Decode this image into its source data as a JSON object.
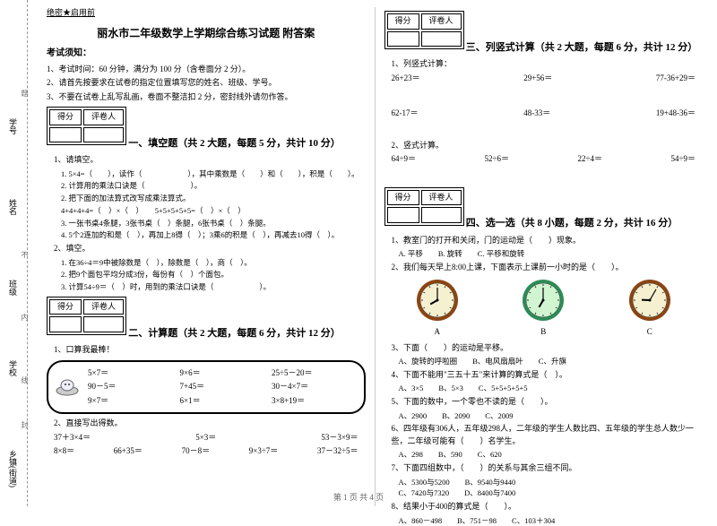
{
  "binding": {
    "labels": [
      "乡镇(街道)",
      "学校",
      "班级",
      "姓名",
      "学号"
    ],
    "marks": [
      "封",
      "线",
      "内",
      "不",
      "答",
      "题"
    ],
    "side_note": "密"
  },
  "header": {
    "secret": "绝密★启用前",
    "title": "丽水市二年级数学上学期综合练习试题 附答案",
    "notice_title": "考试须知：",
    "notices": [
      "1、考试时间：60 分钟，满分为 100 分（含卷面分 2 分）。",
      "2、请首先按要求在试卷的指定位置填写您的姓名、班级、学号。",
      "3、不要在试卷上乱写乱画，卷面不整洁扣 2 分，密封线外请勿作答。"
    ]
  },
  "score_box": {
    "c1": "得分",
    "c2": "评卷人"
  },
  "sections": {
    "s1": {
      "title": "一、填空题（共 2 大题，每题 5 分，共计 10 分）",
      "q1": "1、请填空。",
      "q1_items": [
        "1. 5×4=（　　），读作（　　　　　　），其中乘数是（　　）和（　　），积是（　　）。",
        "2. 计算用的乘法口诀是（　　　　　　）。",
        "2. 把下面的加法算式改写成乘法算式。",
        "4+4+4+4=（　）×（　）　　5+5+5+5+5=（　）×（　）",
        "3. 一张书桌4条腿，3张书桌（　）条腿，6张书桌（　）条腿。",
        "4. 5个2连加的和是（　），再加上8得（　）；3乘6的积是（　），再减去10得（　）。"
      ],
      "q2": "2、填空。",
      "q2_items": [
        "1. 在36÷4＝9中被除数是（　），除数是（　），商（　）。",
        "2. 把9个面包平均分成3份，每份有（　）个面包。",
        "3. 计算54÷9＝（　）时，用到的乘法口诀是（　　　　　　）。"
      ]
    },
    "s2": {
      "title": "二、计算题（共 2 大题，每题 6 分，共计 12 分）",
      "q1": "1、口算我最棒！",
      "calc": [
        "5×7＝",
        "9×6＝",
        "25÷5－20＝",
        "90－5＝",
        "7+45＝",
        "30－4×7＝",
        "9×7＝",
        "6×1＝",
        "3×8+19＝"
      ],
      "q2": "2、直接写出得数。",
      "calc2_rows": [
        [
          "37＋3×4＝",
          "5×3＝",
          "53－3×9＝"
        ],
        [
          "8×8＝",
          "66+35＝",
          "70－8＝",
          "9×3÷7＝",
          "37－32÷5＝"
        ]
      ]
    },
    "s3": {
      "title": "三、列竖式计算（共 2 大题，每题 6 分，共计 12 分）",
      "q1": "1、列竖式计算：",
      "q1_rows": [
        [
          "26+23＝",
          "29+56＝",
          "77-36+29＝"
        ],
        [
          "62-17＝",
          "48-33＝",
          "19+48-36＝"
        ]
      ],
      "q2": "2、竖式计算。",
      "q2_row": [
        "64÷9＝",
        "52÷6＝",
        "22÷4＝",
        "54÷9＝"
      ]
    },
    "s4": {
      "title": "四、选一选（共 8 小题，每题 2 分，共计 16 分）",
      "q1": "1、教室门的打开和关闭，门的运动是（　　）现象。",
      "q1_opts": "A. 平移　　B. 旋转　　C. 平移和旋转",
      "q2": "2、我们每天早上8:00上课，下面表示上课前一小时的是（　　）。",
      "clock_labels": [
        "A",
        "B",
        "C"
      ],
      "clocks": [
        {
          "h": 8,
          "m": 0,
          "face": "#f5f0d0",
          "ring": "#8b4513"
        },
        {
          "h": 7,
          "m": 0,
          "face": "#d0f5d0",
          "ring": "#2e8b57"
        },
        {
          "h": 9,
          "m": 5,
          "face": "#f5f0d0",
          "ring": "#8b4513"
        }
      ],
      "q3": "3、下面（　　）的运动是平移。",
      "q3_opts": "A、旋转的呼啦圈　　B、电风扇扇叶　　C、升旗",
      "q4": "4、下面不能用\"三五十五\"来计算的算式是（　）。",
      "q4_opts": "A、3×5　　B、5×3　　C、5+5+5+5+5",
      "q5": "5、下面的数中，一个零也不读的是（　　）。",
      "q5_opts": "A、2900　　B、2090　　C、2009",
      "q6": "6、四年级有306人，五年级298人，二年级的学生人数比四、五年级的学生总人数少一些，二年级可能有（　　）名学生。",
      "q6_opts": "A、298　　B、590　　C、620",
      "q7": "7、下面四组数中，（　　）的关系与其余三组不同。",
      "q7_opts": "A、5300与5200　　B、9540与9440\nC、7420与7320　　D、8400与7400",
      "q8": "8、结果小于400的算式是（　　）。",
      "q8_opts": "A、860－498　　B、751－98　　C、103＋304"
    }
  },
  "footer": "第 1 页 共 4 页"
}
